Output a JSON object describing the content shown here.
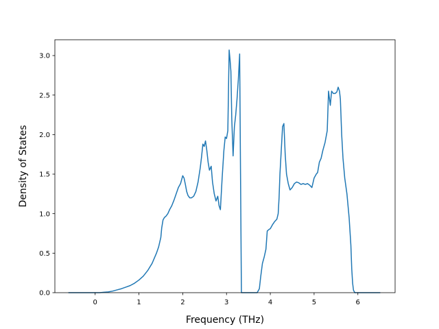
{
  "chart_data": {
    "type": "line",
    "title": "",
    "xlabel": "Frequency (THz)",
    "ylabel": "Density of States",
    "xlim": [
      -0.92,
      6.85
    ],
    "ylim": [
      0.0,
      3.2
    ],
    "xticks": [
      0,
      1,
      2,
      3,
      4,
      5,
      6
    ],
    "yticks": [
      0.0,
      0.5,
      1.0,
      1.5,
      2.0,
      2.5,
      3.0
    ],
    "ytick_labels": [
      "0.0",
      "0.5",
      "1.0",
      "1.5",
      "2.0",
      "2.5",
      "3.0"
    ],
    "grid": false,
    "legend": false,
    "series": [
      {
        "color": "#1f77b4",
        "x": [
          -0.6,
          -0.4,
          -0.2,
          0.0,
          0.1,
          0.2,
          0.3,
          0.4,
          0.5,
          0.6,
          0.7,
          0.8,
          0.9,
          1.0,
          1.1,
          1.2,
          1.3,
          1.4,
          1.45,
          1.5,
          1.52,
          1.55,
          1.58,
          1.62,
          1.66,
          1.7,
          1.75,
          1.8,
          1.85,
          1.9,
          1.95,
          2.0,
          2.03,
          2.06,
          2.09,
          2.12,
          2.16,
          2.2,
          2.25,
          2.3,
          2.35,
          2.4,
          2.43,
          2.46,
          2.49,
          2.52,
          2.55,
          2.58,
          2.61,
          2.65,
          2.68,
          2.72,
          2.76,
          2.8,
          2.83,
          2.86,
          2.9,
          2.94,
          2.97,
          3.0,
          3.03,
          3.06,
          3.08,
          3.1,
          3.12,
          3.15,
          3.18,
          3.21,
          3.24,
          3.27,
          3.3,
          3.32,
          3.34,
          3.36,
          3.4,
          3.5,
          3.6,
          3.7,
          3.75,
          3.78,
          3.82,
          3.86,
          3.9,
          3.93,
          3.97,
          4.0,
          4.05,
          4.1,
          4.15,
          4.18,
          4.2,
          4.22,
          4.25,
          4.28,
          4.31,
          4.34,
          4.37,
          4.41,
          4.45,
          4.5,
          4.55,
          4.6,
          4.65,
          4.7,
          4.75,
          4.8,
          4.85,
          4.9,
          4.95,
          5.0,
          5.05,
          5.08,
          5.12,
          5.16,
          5.2,
          5.25,
          5.3,
          5.33,
          5.37,
          5.4,
          5.44,
          5.48,
          5.52,
          5.55,
          5.58,
          5.6,
          5.63,
          5.66,
          5.7,
          5.75,
          5.8,
          5.84,
          5.86,
          5.88,
          5.9,
          5.93,
          6.0,
          6.2,
          6.5
        ],
        "y": [
          0.0,
          0.0,
          0.0,
          0.0,
          0.0,
          0.005,
          0.01,
          0.02,
          0.035,
          0.05,
          0.07,
          0.09,
          0.12,
          0.16,
          0.21,
          0.28,
          0.37,
          0.5,
          0.58,
          0.7,
          0.82,
          0.92,
          0.95,
          0.97,
          1.0,
          1.05,
          1.1,
          1.17,
          1.25,
          1.33,
          1.38,
          1.48,
          1.45,
          1.37,
          1.28,
          1.23,
          1.2,
          1.2,
          1.22,
          1.28,
          1.4,
          1.58,
          1.72,
          1.88,
          1.85,
          1.92,
          1.8,
          1.65,
          1.55,
          1.6,
          1.4,
          1.25,
          1.16,
          1.22,
          1.1,
          1.05,
          1.45,
          1.8,
          1.97,
          1.95,
          2.05,
          3.07,
          2.95,
          2.8,
          2.2,
          1.73,
          2.1,
          2.25,
          2.45,
          2.7,
          3.02,
          1.5,
          0.0,
          0.0,
          0.0,
          0.0,
          0.0,
          0.0,
          0.05,
          0.2,
          0.37,
          0.45,
          0.55,
          0.78,
          0.8,
          0.81,
          0.86,
          0.9,
          0.93,
          1.0,
          1.2,
          1.5,
          1.8,
          2.1,
          2.14,
          1.75,
          1.5,
          1.38,
          1.3,
          1.33,
          1.38,
          1.4,
          1.39,
          1.37,
          1.38,
          1.37,
          1.38,
          1.36,
          1.33,
          1.45,
          1.5,
          1.52,
          1.65,
          1.7,
          1.8,
          1.9,
          2.05,
          2.55,
          2.37,
          2.55,
          2.52,
          2.52,
          2.54,
          2.6,
          2.55,
          2.45,
          2.0,
          1.7,
          1.45,
          1.25,
          0.95,
          0.6,
          0.3,
          0.12,
          0.03,
          0.0,
          0.0,
          0.0,
          0.0
        ]
      }
    ]
  }
}
